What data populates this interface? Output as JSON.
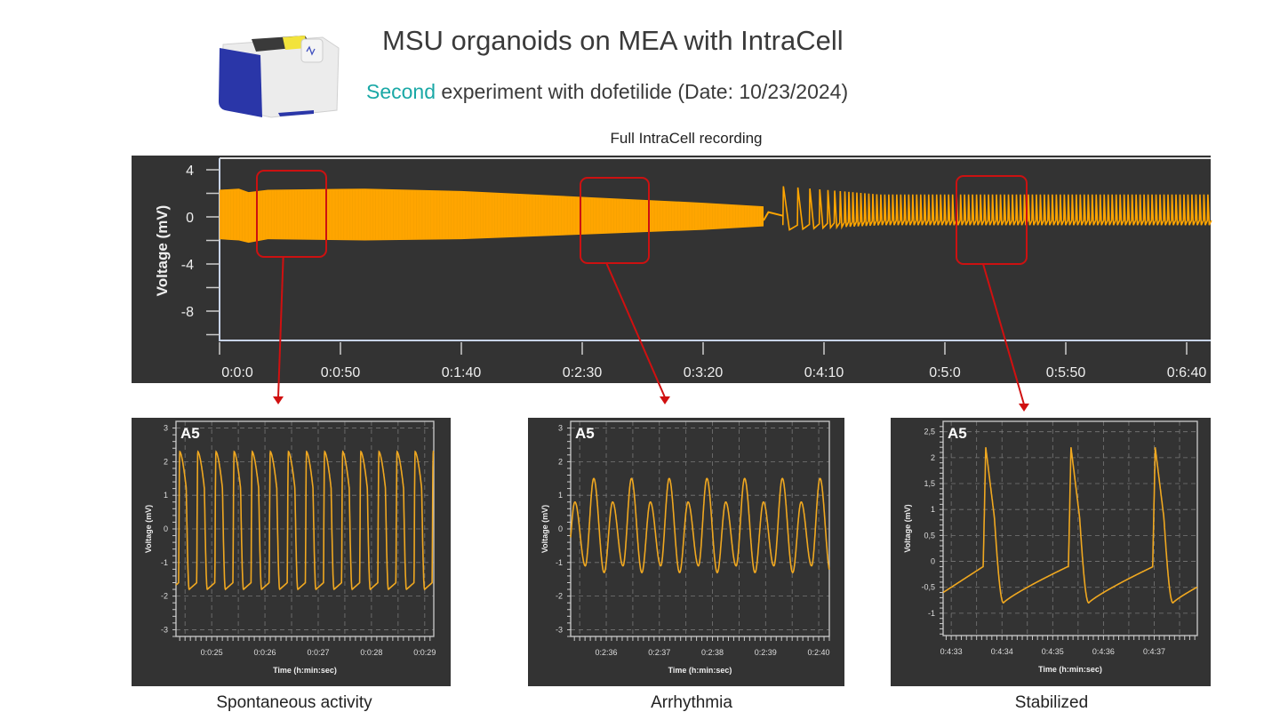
{
  "header": {
    "title": "MSU organoids on MEA with IntraCell",
    "subtitle_accent": "Second",
    "subtitle_rest": " experiment with dofetilide (Date: 10/23/2024)",
    "device_image": "mea-device-illustration"
  },
  "colors": {
    "trace": "#ffa500",
    "panel_bg": "#333333",
    "highlight_box": "#cc1111",
    "accent_text": "#1aa8a6"
  },
  "chart_data": [
    {
      "type": "line",
      "title": "Full IntraCell recording",
      "ylabel": "Voltage (mV)",
      "xlabel": "",
      "yticks": [
        "4",
        "0",
        "-4",
        "-8"
      ],
      "xticks": [
        "0:0:0",
        "0:0:50",
        "0:1:40",
        "0:2:30",
        "0:3:20",
        "0:4:10",
        "0:5:0",
        "0:5:50",
        "0:6:40"
      ],
      "xlim_s": [
        0,
        410
      ],
      "ylim": [
        -10.5,
        4.8
      ],
      "envelope_dense": [
        {
          "t": 0,
          "max": 2.3,
          "min": -1.9
        },
        {
          "t": 8,
          "max": 2.4,
          "min": -2.0
        },
        {
          "t": 12,
          "max": 2.1,
          "min": -2.2
        },
        {
          "t": 20,
          "max": 2.3,
          "min": -1.9
        },
        {
          "t": 60,
          "max": 2.4,
          "min": -2.0
        },
        {
          "t": 100,
          "max": 2.2,
          "min": -1.9
        },
        {
          "t": 150,
          "max": 1.7,
          "min": -1.5
        },
        {
          "t": 200,
          "max": 1.2,
          "min": -1.1
        },
        {
          "t": 225,
          "max": 0.9,
          "min": -0.8
        }
      ],
      "pause": {
        "t_start": 225,
        "t_end": 233,
        "value": 0.1
      },
      "recovered_beats": {
        "t_start": 233,
        "t_end": 410,
        "peak_mV": [
          2.6,
          1.9
        ],
        "trough_mV": [
          -1.1,
          -0.7
        ],
        "period_s": [
          6,
          1.65
        ]
      },
      "highlights": [
        {
          "t_start": 15,
          "t_end": 44,
          "target": "Spontaneous activity"
        },
        {
          "t_start": 150,
          "t_end": 178,
          "target": "Arrhythmia"
        },
        {
          "t_start": 305,
          "t_end": 334,
          "target": "Stabilized"
        }
      ]
    },
    {
      "type": "line",
      "label": "A5",
      "caption": "Spontaneous activity",
      "ylabel": "Voltage (mV)",
      "xlabel": "Time (h:min:sec)",
      "yticks": [
        "3",
        "2",
        "1",
        "0",
        "-1",
        "-2",
        "-3"
      ],
      "xticks": [
        "0:0:25",
        "0:0:26",
        "0:0:27",
        "0:0:28",
        "0:0:29"
      ],
      "xlim_s": [
        24.33,
        29.17
      ],
      "ylim": [
        -3.2,
        3.2
      ],
      "beat_period_s": 0.34,
      "first_upstroke_s": 24.38,
      "peak_mV": 2.3,
      "trough_mV": -1.8
    },
    {
      "type": "line",
      "label": "A5",
      "caption": "Arrhythmia",
      "ylabel": "Voltage (mV)",
      "xlabel": "Time (h:min:sec)",
      "yticks": [
        "3",
        "2",
        "1",
        "0",
        "-1",
        "-2",
        "-3"
      ],
      "xticks": [
        "0:2:36",
        "0:2:37",
        "0:2:38",
        "0:2:39",
        "0:2:40"
      ],
      "xlim_s": [
        155.33,
        160.2
      ],
      "ylim": [
        -3.2,
        3.2
      ],
      "beat_period_s": 0.355,
      "first_peak_s": 155.41,
      "alternating_peaks_mV": [
        0.8,
        1.5
      ],
      "alternating_troughs_mV": [
        -1.1,
        -1.3
      ]
    },
    {
      "type": "line",
      "label": "A5",
      "caption": "Stabilized",
      "ylabel": "Voltage (mV)",
      "xlabel": "Time (h:min:sec)",
      "yticks": [
        "2,5",
        "2",
        "1,5",
        "1",
        "0,5",
        "0",
        "-0,5",
        "-1"
      ],
      "xticks": [
        "0:4:33",
        "0:4:34",
        "0:4:35",
        "0:4:36",
        "0:4:37"
      ],
      "xlim_s": [
        272.84,
        277.85
      ],
      "ylim": [
        -1.43,
        2.7
      ],
      "upstrokes_s": [
        273.63,
        275.31,
        276.97
      ],
      "peak_mV": 2.2,
      "trough_mV": -0.8
    }
  ]
}
